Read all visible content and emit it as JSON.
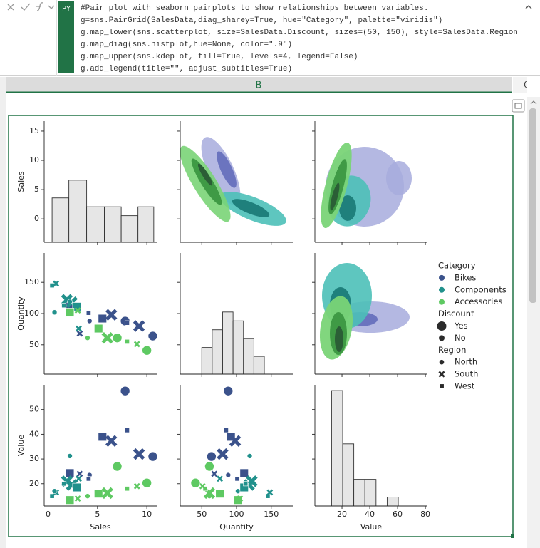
{
  "formula_bar": {
    "badge": "PY",
    "code": [
      "#Pair plot with seaborn pairplots to show relationships between variables.",
      "g=sns.PairGrid(SalesData,diag_sharey=True, hue=\"Category\", palette=\"viridis\")",
      "g.map_lower(sns.scatterplot, size=SalesData.Discount, sizes=(50, 150), style=SalesData.Region",
      "g.map_diag(sns.histplot,hue=None, color=\".9\")",
      "g.map_upper(sns.kdeplot, fill=True, levels=4, legend=False)",
      "g.add_legend(title=\"\", adjust_subtitles=True)"
    ]
  },
  "sheet": {
    "column": "B",
    "next_column": "C"
  },
  "chart_data": {
    "type": "pairplot",
    "columns": [
      {
        "label": "Sales",
        "xlim": [
          -0.4,
          11
        ],
        "xticks": [
          0,
          5,
          10
        ]
      },
      {
        "label": "Quantity",
        "xlim": [
          19,
          181
        ],
        "xticks": [
          50,
          100,
          150
        ]
      },
      {
        "label": "Value",
        "xlim": [
          0.5,
          81.5
        ],
        "xticks": [
          20,
          40,
          60,
          80
        ]
      }
    ],
    "rows": [
      {
        "label": "Sales",
        "ylim": [
          -4,
          16.7
        ],
        "yticks": [
          0,
          5,
          10,
          15
        ]
      },
      {
        "label": "Quantity",
        "ylim": [
          3,
          197
        ],
        "yticks": [
          50,
          100,
          150
        ]
      },
      {
        "label": "Value",
        "ylim": [
          11,
          60
        ],
        "yticks": [
          20,
          30,
          40,
          50
        ]
      }
    ],
    "histograms": [
      {
        "bins": [
          0.4,
          2.1,
          3.9,
          5.7,
          7.4,
          9.1,
          10.7
        ],
        "counts": [
          5,
          7,
          4,
          4,
          3,
          4
        ]
      },
      {
        "bins": [
          50,
          65,
          80,
          95,
          110,
          125,
          140
        ],
        "counts": [
          3,
          5,
          7,
          6,
          4,
          2
        ]
      },
      {
        "bins": [
          12.5,
          20.5,
          28.5,
          36.5,
          44.5,
          52.5,
          60.5
        ],
        "counts": [
          13,
          7,
          3,
          3,
          0,
          1
        ]
      }
    ],
    "hist_color": "#e6e6e6",
    "hue_title": "Category",
    "series": [
      {
        "name": "Bikes",
        "color": "#3b528b",
        "values": [
          [
            7.8,
            10.6,
            5.5,
            6.4,
            9.2,
            2.2,
            8.0,
            4.2,
            3.2,
            4.1
          ],
          [
            88,
            64,
            92,
            98,
            80,
            111,
            85,
            88,
            68,
            101
          ],
          [
            57.5,
            31,
            39,
            37.3,
            32,
            24.3,
            41.6,
            23.5,
            24,
            22
          ]
        ],
        "discount": [
          "Yes",
          "Yes",
          "Yes",
          "Yes",
          "Yes",
          "Yes",
          "No",
          "No",
          "No",
          "No"
        ],
        "region": [
          "North",
          "North",
          "West",
          "South",
          "South",
          "West",
          "West",
          "North",
          "South",
          "West"
        ]
      },
      {
        "name": "Components",
        "color": "#21918c",
        "values": [
          [
            0.4,
            0.8,
            0.65,
            1.9,
            2.4,
            2.2,
            2.9,
            3.1,
            1.6
          ],
          [
            145,
            148,
            102,
            122,
            118,
            119,
            111,
            76,
            113
          ],
          [
            15,
            16.5,
            17,
            21,
            19.5,
            31.2,
            18.5,
            22,
            20
          ]
        ],
        "discount": [
          "No",
          "No",
          "No",
          "Yes",
          "Yes",
          "No",
          "Yes",
          "No",
          "No"
        ],
        "region": [
          "West",
          "South",
          "North",
          "South",
          "South",
          "North",
          "West",
          "South",
          "West"
        ]
      },
      {
        "name": "Accessories",
        "color": "#5ec962",
        "values": [
          [
            2.2,
            3.0,
            4.0,
            5.1,
            6.0,
            7.0,
            8.0,
            9.0,
            10.0
          ],
          [
            102,
            105,
            61,
            76,
            61,
            61,
            55,
            51,
            41
          ],
          [
            13.4,
            14,
            15,
            16,
            16.2,
            27,
            18,
            19,
            20.3
          ]
        ],
        "discount": [
          "Yes",
          "No",
          "No",
          "Yes",
          "Yes",
          "Yes",
          "No",
          "No",
          "Yes"
        ],
        "region": [
          "West",
          "South",
          "North",
          "West",
          "South",
          "North",
          "West",
          "South",
          "North"
        ]
      }
    ],
    "size": {
      "title": "Discount",
      "levels": [
        "Yes",
        "No"
      ]
    },
    "style": {
      "title": "Region",
      "levels": [
        "North",
        "South",
        "West"
      ]
    }
  }
}
